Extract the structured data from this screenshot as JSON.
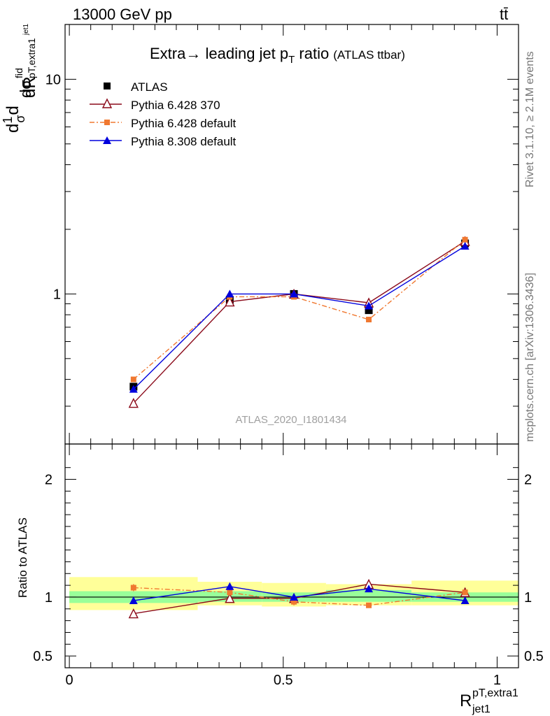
{
  "header": {
    "left": "13000 GeV pp",
    "right": "tt̄"
  },
  "plot_title": {
    "main_prefix": "Extra",
    "main_arrow": "→",
    "main_mid": " leading jet p",
    "main_sub": "T",
    "main_suffix": " ratio",
    "tag": "(ATLAS ttbar)"
  },
  "y_label": {
    "d1": "d",
    "frac_top": "1",
    "frac_bottom": "σ",
    "d2": "d",
    "num": "dσ",
    "num_sup": "fid",
    "num_sub": "pT,extra1",
    "num_sub2": "jet1",
    "den": "dR"
  },
  "x_label": {
    "main": "R",
    "sup": "pT,extra1",
    "sub": "jet1"
  },
  "side_labels": {
    "rivet": "Rivet 3.1.10, ≥ 2.1M events",
    "mcplots": "mcplots.cern.ch [arXiv:1306.3436]"
  },
  "watermark": "ATLAS_2020_I1801434",
  "ratio_ylabel": "Ratio to ATLAS",
  "colors": {
    "atlas": "#000000",
    "p6_370": "#8b0a1a",
    "p6_default": "#f07830",
    "p8_default": "#0000dd",
    "band_inner": "#99ff99",
    "band_outer": "#ffff99"
  },
  "chart_data": {
    "type": "line",
    "main": {
      "yscale": "log",
      "ylim": [
        0.2,
        18
      ],
      "xlim": [
        -0.01,
        1.05
      ],
      "y_tick_labels": [
        "1",
        "10"
      ]
    },
    "ratio": {
      "ylim": [
        0.4,
        2.3
      ],
      "y_tick_labels": [
        "0.5",
        "1",
        "2"
      ]
    },
    "x_tick_labels": [
      "0",
      "0.5",
      "1"
    ],
    "bins": [
      [
        0.0,
        0.3
      ],
      [
        0.3,
        0.45
      ],
      [
        0.45,
        0.6
      ],
      [
        0.6,
        0.8
      ],
      [
        0.8,
        1.05
      ]
    ],
    "x": [
      0.15,
      0.375,
      0.525,
      0.7,
      0.925
    ],
    "series": [
      {
        "name": "ATLAS",
        "key": "atlas",
        "marker": "square",
        "linestyle": "none",
        "values": [
          0.37,
          0.94,
          1.0,
          0.84,
          1.72
        ],
        "ratio": [
          1.0,
          1.0,
          1.0,
          1.0,
          1.0
        ],
        "band_inner": [
          [
            0.95,
            1.05
          ],
          [
            0.96,
            1.05
          ],
          [
            0.96,
            1.04
          ],
          [
            0.96,
            1.06
          ],
          [
            0.96,
            1.04
          ]
        ],
        "band_outer": [
          [
            0.89,
            1.17
          ],
          [
            0.93,
            1.13
          ],
          [
            0.92,
            1.12
          ],
          [
            0.93,
            1.11
          ],
          [
            0.93,
            1.14
          ]
        ]
      },
      {
        "name": "Pythia 6.428 370",
        "key": "p6_370",
        "marker": "triangle-open",
        "linestyle": "solid",
        "values": [
          0.31,
          0.92,
          1.0,
          0.91,
          1.76
        ],
        "ratio": [
          0.86,
          0.99,
          0.99,
          1.11,
          1.04
        ],
        "ratio_err": [
          0.02,
          0.02,
          0.02,
          0.02,
          0.02
        ]
      },
      {
        "name": "Pythia 6.428 default",
        "key": "p6_default",
        "marker": "square-small",
        "linestyle": "dashdot",
        "values": [
          0.4,
          0.97,
          0.97,
          0.76,
          1.79
        ],
        "ratio": [
          1.08,
          1.04,
          0.96,
          0.93,
          1.04
        ],
        "ratio_err": [
          0.03,
          0.03,
          0.03,
          0.02,
          0.02
        ]
      },
      {
        "name": "Pythia 8.308 default",
        "key": "p8_default",
        "marker": "triangle",
        "linestyle": "solid",
        "values": [
          0.36,
          1.0,
          1.0,
          0.88,
          1.67
        ],
        "ratio": [
          0.97,
          1.09,
          1.0,
          1.07,
          0.97
        ],
        "ratio_err": [
          0.03,
          0.03,
          0.03,
          0.02,
          0.02
        ]
      }
    ]
  }
}
